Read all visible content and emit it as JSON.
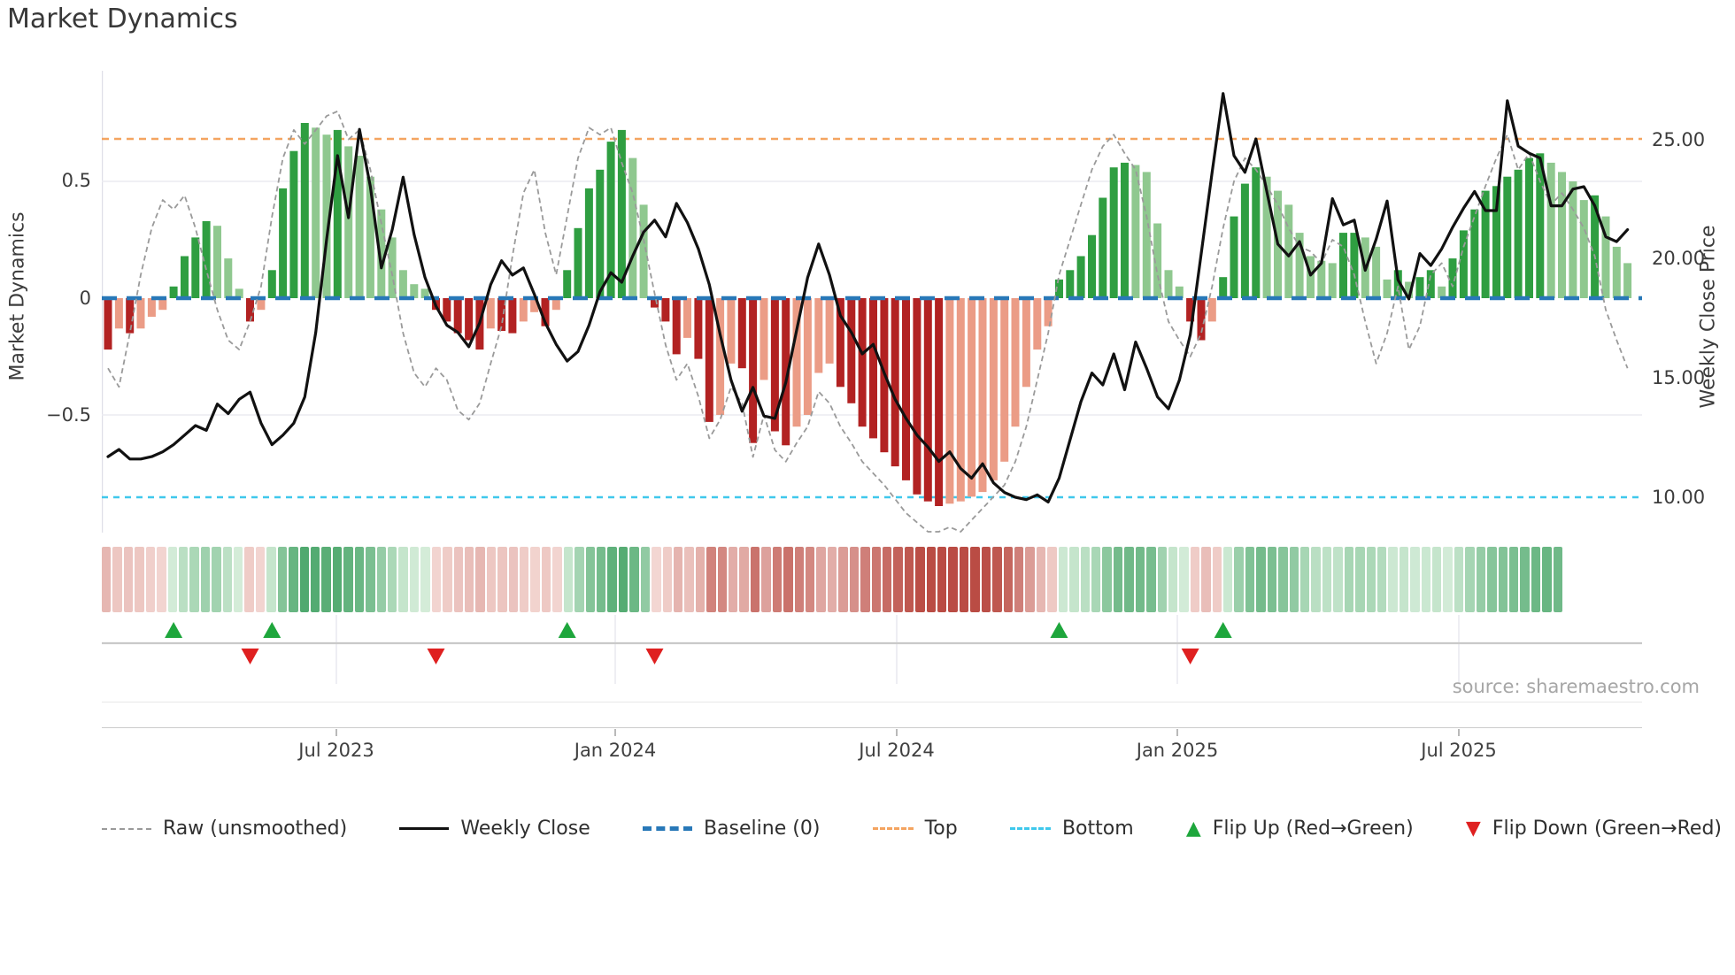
{
  "title": "Market Dynamics",
  "source_text": "source: sharemaestro.com",
  "axes": {
    "left_label": "Market Dynamics",
    "right_label": "Weekly Close Price",
    "left_ticks": [
      "0.5",
      "0",
      "−0.5"
    ],
    "right_ticks": [
      "25.00",
      "20.00",
      "15.00",
      "10.00"
    ],
    "x_ticks": [
      "Jul 2023",
      "Jan 2024",
      "Jul 2024",
      "Jan 2025",
      "Jul 2025"
    ]
  },
  "legend": {
    "items": [
      {
        "label": "Raw (unsmoothed)",
        "type": "dashed-line",
        "color": "#9a9a9a"
      },
      {
        "label": "Weekly Close",
        "type": "solid-line",
        "color": "#111111"
      },
      {
        "label": "Baseline (0)",
        "type": "bold-dashed-line",
        "color": "#2878b8"
      },
      {
        "label": "Top",
        "type": "dotted-line",
        "color": "#f4a460"
      },
      {
        "label": "Bottom",
        "type": "dotted-line",
        "color": "#3fc8ec"
      },
      {
        "label": "Flip Up (Red→Green)",
        "type": "triangle-up",
        "color": "#1ea63c"
      },
      {
        "label": "Flip Down (Green→Red)",
        "type": "triangle-down",
        "color": "#df2020"
      }
    ],
    "triangle_up_glyph": "▲",
    "triangle_down_glyph": "▼"
  },
  "colors": {
    "bar_green_dark": "#2f9e41",
    "bar_green_light": "#8fc88f",
    "bar_red_dark": "#b22222",
    "bar_red_light": "#eb9c86",
    "close_line": "#111111",
    "raw_line": "#9a9a9a",
    "baseline": "#2878b8",
    "top_line": "#f4a460",
    "bottom_line": "#3fc8ec",
    "flip_up": "#1ea63c",
    "flip_down": "#df2020",
    "heat_neg_light": "#f6ddd9",
    "heat_neg_dark": "#ba4c44",
    "heat_pos_light": "#dbf0de",
    "heat_pos_dark": "#3ea060",
    "grid": "#ececf1",
    "spine": "#dfdfe7"
  },
  "chart_data": {
    "type": "combo-bar-line",
    "weeks": 140,
    "x_tick_labels": [
      "Jul 2023",
      "Jan 2024",
      "Jul 2024",
      "Jan 2025",
      "Jul 2025"
    ],
    "x_tick_week_positions": [
      20.9,
      46.4,
      72.1,
      97.8,
      123.6
    ],
    "left_axis": {
      "label": "Market Dynamics",
      "ticks": [
        0.5,
        0,
        -0.5
      ],
      "range": [
        -1.0,
        0.97
      ]
    },
    "right_axis": {
      "label": "Weekly Close Price",
      "ticks": [
        25,
        20,
        15,
        10
      ],
      "range": [
        9.2,
        27.9
      ]
    },
    "baseline_value": 0,
    "top_line": {
      "axis": "right",
      "value": 25
    },
    "bottom_line": {
      "axis": "right",
      "value": 10
    },
    "flip_up_weeks": [
      6,
      15,
      42,
      87,
      102
    ],
    "flip_down_weeks": [
      13,
      30,
      50,
      99
    ],
    "heatmap": {
      "cells": 133,
      "values_from": "oscillator"
    },
    "oscillator": [
      -0.22,
      -0.13,
      -0.15,
      -0.13,
      -0.08,
      -0.05,
      0.05,
      0.18,
      0.26,
      0.33,
      0.31,
      0.17,
      0.04,
      -0.1,
      -0.05,
      0.12,
      0.47,
      0.63,
      0.75,
      0.73,
      0.7,
      0.72,
      0.65,
      0.61,
      0.52,
      0.38,
      0.26,
      0.12,
      0.06,
      0.04,
      -0.05,
      -0.1,
      -0.15,
      -0.18,
      -0.22,
      -0.13,
      -0.14,
      -0.15,
      -0.1,
      -0.06,
      -0.12,
      -0.05,
      0.12,
      0.3,
      0.47,
      0.55,
      0.67,
      0.72,
      0.6,
      0.4,
      -0.04,
      -0.1,
      -0.24,
      -0.17,
      -0.26,
      -0.53,
      -0.5,
      -0.28,
      -0.3,
      -0.62,
      -0.35,
      -0.57,
      -0.63,
      -0.55,
      -0.5,
      -0.32,
      -0.28,
      -0.38,
      -0.45,
      -0.55,
      -0.6,
      -0.66,
      -0.72,
      -0.78,
      -0.84,
      -0.87,
      -0.89,
      -0.88,
      -0.87,
      -0.85,
      -0.83,
      -0.78,
      -0.7,
      -0.55,
      -0.38,
      -0.22,
      -0.12,
      0.08,
      0.12,
      0.18,
      0.27,
      0.43,
      0.56,
      0.58,
      0.57,
      0.54,
      0.32,
      0.12,
      0.05,
      -0.1,
      -0.18,
      -0.1,
      0.09,
      0.35,
      0.49,
      0.56,
      0.52,
      0.46,
      0.4,
      0.28,
      0.18,
      0.16,
      0.15,
      0.28,
      0.28,
      0.26,
      0.22,
      0.08,
      0.12,
      0.07,
      0.09,
      0.12,
      0.05,
      0.17,
      0.29,
      0.38,
      0.46,
      0.48,
      0.52,
      0.55,
      0.6,
      0.62,
      0.58,
      0.54,
      0.5,
      0.42,
      0.44,
      0.35,
      0.22,
      0.15
    ],
    "raw": [
      -0.3,
      -0.38,
      -0.15,
      0.1,
      0.3,
      0.42,
      0.38,
      0.44,
      0.3,
      0.12,
      -0.05,
      -0.18,
      -0.22,
      -0.1,
      0.05,
      0.35,
      0.6,
      0.72,
      0.66,
      0.72,
      0.78,
      0.8,
      0.68,
      0.72,
      0.55,
      0.32,
      0.1,
      -0.15,
      -0.32,
      -0.38,
      -0.3,
      -0.35,
      -0.48,
      -0.52,
      -0.45,
      -0.28,
      -0.12,
      0.18,
      0.45,
      0.55,
      0.28,
      0.1,
      0.35,
      0.6,
      0.73,
      0.7,
      0.73,
      0.58,
      0.45,
      0.25,
      0.02,
      -0.2,
      -0.35,
      -0.28,
      -0.42,
      -0.6,
      -0.52,
      -0.38,
      -0.45,
      -0.68,
      -0.5,
      -0.65,
      -0.7,
      -0.62,
      -0.55,
      -0.4,
      -0.45,
      -0.55,
      -0.62,
      -0.7,
      -0.75,
      -0.8,
      -0.86,
      -0.92,
      -0.96,
      -1.0,
      -1.0,
      -0.98,
      -1.0,
      -0.95,
      -0.9,
      -0.85,
      -0.8,
      -0.7,
      -0.55,
      -0.35,
      -0.15,
      0.1,
      0.25,
      0.4,
      0.55,
      0.65,
      0.7,
      0.62,
      0.55,
      0.35,
      0.1,
      -0.1,
      -0.18,
      -0.25,
      -0.15,
      0.05,
      0.3,
      0.5,
      0.6,
      0.55,
      0.48,
      0.4,
      0.3,
      0.22,
      0.2,
      0.15,
      0.25,
      0.22,
      0.1,
      -0.1,
      -0.28,
      -0.15,
      0.05,
      -0.22,
      -0.12,
      0.1,
      0.15,
      0.05,
      0.22,
      0.35,
      0.48,
      0.6,
      0.7,
      0.55,
      0.62,
      0.5,
      0.4,
      0.45,
      0.38,
      0.3,
      0.18,
      -0.05,
      -0.18,
      -0.3
    ],
    "close": [
      11.7,
      12.0,
      11.6,
      11.6,
      11.7,
      11.9,
      12.2,
      12.6,
      13.0,
      12.8,
      13.9,
      13.5,
      14.1,
      14.4,
      13.1,
      12.2,
      12.6,
      13.1,
      14.2,
      16.9,
      20.8,
      24.3,
      21.7,
      25.4,
      23.0,
      19.6,
      21.2,
      23.4,
      21.0,
      19.2,
      18.0,
      17.2,
      16.9,
      16.3,
      17.3,
      18.9,
      19.9,
      19.3,
      19.6,
      18.5,
      17.3,
      16.4,
      15.7,
      16.1,
      17.2,
      18.6,
      19.4,
      19.0,
      20.1,
      21.1,
      21.6,
      20.9,
      22.3,
      21.5,
      20.4,
      18.9,
      16.8,
      14.9,
      13.6,
      14.6,
      13.4,
      13.3,
      14.8,
      17.0,
      19.2,
      20.6,
      19.3,
      17.6,
      16.9,
      16.0,
      16.4,
      15.2,
      14.1,
      13.3,
      12.6,
      12.1,
      11.5,
      11.9,
      11.2,
      10.8,
      11.4,
      10.6,
      10.2,
      10.0,
      9.9,
      10.1,
      9.8,
      10.8,
      12.4,
      14.0,
      15.2,
      14.7,
      16.0,
      14.5,
      16.5,
      15.4,
      14.2,
      13.7,
      14.9,
      16.8,
      20.2,
      23.6,
      26.9,
      24.3,
      23.6,
      25.0,
      22.8,
      20.6,
      20.1,
      20.7,
      19.3,
      19.8,
      22.5,
      21.4,
      21.6,
      19.5,
      20.8,
      22.4,
      19.1,
      18.3,
      20.2,
      19.7,
      20.4,
      21.3,
      22.1,
      22.8,
      22.0,
      22.0,
      26.6,
      24.7,
      24.4,
      24.2,
      22.2,
      22.2,
      22.9,
      23.0,
      22.2,
      20.9,
      20.7,
      21.2
    ]
  }
}
